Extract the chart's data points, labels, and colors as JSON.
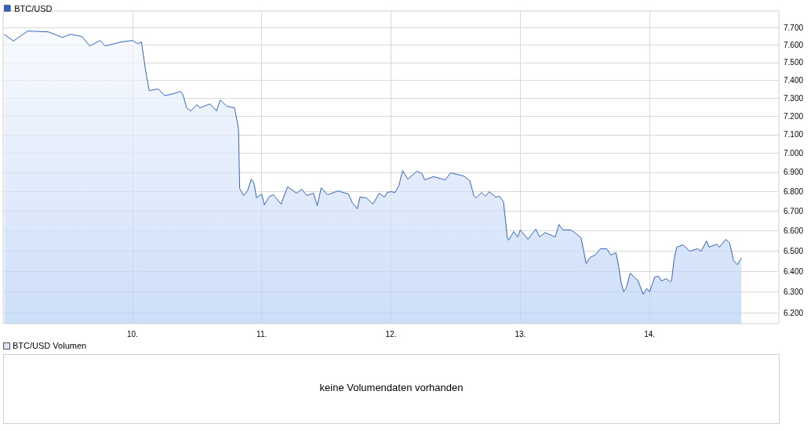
{
  "chart_data": [
    {
      "type": "area",
      "log": "y",
      "grid": true,
      "legend": "top left",
      "marker": "none",
      "line_style": "solid",
      "x": [
        9.01,
        9.08,
        9.19,
        9.35,
        9.46,
        9.52,
        9.61,
        9.67,
        9.75,
        9.79,
        9.91,
        10.0,
        10.04,
        10.07,
        10.1,
        10.11,
        10.13,
        10.2,
        10.25,
        10.32,
        10.37,
        10.39,
        10.42,
        10.45,
        10.5,
        10.52,
        10.6,
        10.63,
        10.65,
        10.68,
        10.73,
        10.79,
        10.82,
        10.83,
        10.86,
        10.89,
        10.92,
        10.94,
        10.96,
        11.0,
        11.02,
        11.06,
        11.09,
        11.15,
        11.2,
        11.27,
        11.31,
        11.35,
        11.4,
        11.43,
        11.46,
        11.51,
        11.59,
        11.67,
        11.7,
        11.74,
        11.76,
        11.81,
        11.86,
        11.91,
        11.95,
        11.97,
        12.0,
        12.03,
        12.06,
        12.09,
        12.13,
        12.2,
        12.24,
        12.26,
        12.33,
        12.42,
        12.46,
        12.56,
        12.61,
        12.64,
        12.66,
        12.7,
        12.73,
        12.76,
        12.81,
        12.84,
        12.87,
        12.9,
        12.91,
        12.95,
        12.98,
        13.0,
        13.06,
        13.12,
        13.15,
        13.19,
        13.27,
        13.3,
        13.33,
        13.39,
        13.42,
        13.47,
        13.51,
        13.54,
        13.58,
        13.62,
        13.67,
        13.7,
        13.74,
        13.76,
        13.78,
        13.8,
        13.82,
        13.85,
        13.88,
        13.91,
        13.95,
        13.98,
        14.0,
        14.04,
        14.07,
        14.09,
        14.13,
        14.16,
        14.17,
        14.19,
        14.21,
        14.26,
        14.31,
        14.37,
        14.4,
        14.44,
        14.46,
        14.52,
        14.54,
        14.59,
        14.62,
        14.65,
        14.68,
        14.71
      ],
      "series": [
        {
          "name": "BTC/USD",
          "color": "#2f63c3",
          "values": [
            7662,
            7624,
            7682,
            7677,
            7645,
            7663,
            7650,
            7595,
            7627,
            7595,
            7618,
            7627,
            7608,
            7618,
            7465,
            7421,
            7342,
            7351,
            7314,
            7325,
            7338,
            7320,
            7246,
            7229,
            7264,
            7246,
            7268,
            7246,
            7229,
            7290,
            7255,
            7246,
            7135,
            6815,
            6779,
            6803,
            6864,
            6844,
            6767,
            6787,
            6731,
            6775,
            6783,
            6735,
            6824,
            6791,
            6811,
            6779,
            6791,
            6727,
            6819,
            6783,
            6803,
            6787,
            6743,
            6711,
            6771,
            6767,
            6735,
            6791,
            6771,
            6795,
            6799,
            6795,
            6828,
            6909,
            6864,
            6905,
            6893,
            6860,
            6877,
            6860,
            6897,
            6881,
            6856,
            6779,
            6767,
            6795,
            6775,
            6799,
            6771,
            6775,
            6747,
            6565,
            6553,
            6596,
            6569,
            6604,
            6557,
            6608,
            6569,
            6591,
            6569,
            6631,
            6604,
            6604,
            6591,
            6565,
            6437,
            6468,
            6479,
            6510,
            6510,
            6479,
            6491,
            6427,
            6346,
            6301,
            6320,
            6391,
            6372,
            6356,
            6289,
            6316,
            6301,
            6372,
            6376,
            6353,
            6364,
            6349,
            6353,
            6460,
            6518,
            6530,
            6498,
            6510,
            6498,
            6549,
            6518,
            6533,
            6518,
            6557,
            6537,
            6452,
            6432,
            6464
          ]
        }
      ],
      "xlim": [
        9,
        15
      ],
      "xticks": [
        {
          "value": 10,
          "label": "10."
        },
        {
          "value": 11,
          "label": "11."
        },
        {
          "value": 12,
          "label": "12."
        },
        {
          "value": 13,
          "label": "13."
        },
        {
          "value": 14,
          "label": "14."
        }
      ],
      "ylim": [
        6150,
        7800
      ],
      "yticks": [
        {
          "value": 6200,
          "label": "6.200"
        },
        {
          "value": 6300,
          "label": "6.300"
        },
        {
          "value": 6400,
          "label": "6.400"
        },
        {
          "value": 6500,
          "label": "6.500"
        },
        {
          "value": 6600,
          "label": "6.600"
        },
        {
          "value": 6700,
          "label": "6.700"
        },
        {
          "value": 6800,
          "label": "6.800"
        },
        {
          "value": 6900,
          "label": "6.900"
        },
        {
          "value": 7000,
          "label": "7.000"
        },
        {
          "value": 7100,
          "label": "7.100"
        },
        {
          "value": 7200,
          "label": "7.200"
        },
        {
          "value": 7300,
          "label": "7.300"
        },
        {
          "value": 7400,
          "label": "7.400"
        },
        {
          "value": 7500,
          "label": "7.500"
        },
        {
          "value": 7600,
          "label": "7.600"
        },
        {
          "value": 7700,
          "label": "7.700"
        }
      ]
    },
    {
      "type": "other",
      "title": "BTC/USD Volumen",
      "annotations": [
        "keine Volumendaten vorhanden"
      ]
    }
  ]
}
